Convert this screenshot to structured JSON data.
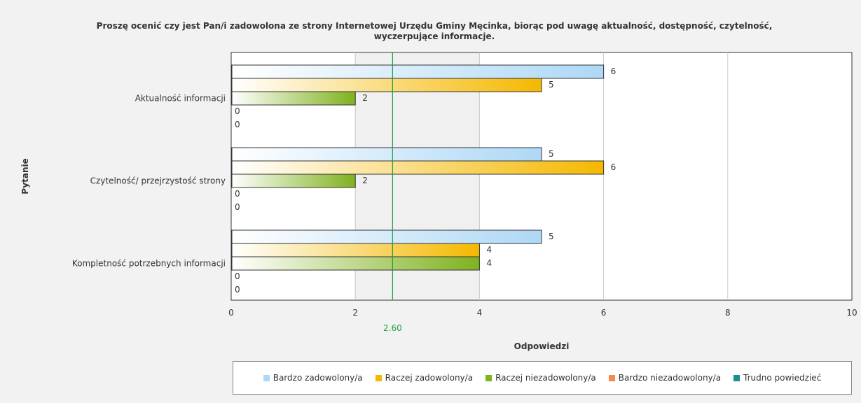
{
  "chart_data": {
    "type": "bar",
    "orientation": "horizontal",
    "title": "Proszę ocenić czy jest Pan/i zadowolona  ze strony Internetowej Urzędu Gminy Męcinka, biorąc pod uwagę aktualność, dostępność, czytelność, wyczerpujące informacje.",
    "xlabel": "Odpowiedzi",
    "ylabel": "Pytanie",
    "xlim": [
      0,
      10
    ],
    "x_ticks": [
      "0",
      "2",
      "4",
      "6",
      "8",
      "10"
    ],
    "grid": true,
    "legend_position": "bottom",
    "categories": [
      "Aktualność informacji",
      "Czytelność/ przejrzystość strony",
      "Kompletność potrzebnych informacji"
    ],
    "series": [
      {
        "name": "Bardzo zadowolony/a",
        "values": [
          6,
          5,
          5
        ],
        "color": "#aed8f6"
      },
      {
        "name": "Raczej zadowolony/a",
        "values": [
          5,
          6,
          4
        ],
        "color": "#f5b800"
      },
      {
        "name": "Raczej niezadowolony/a",
        "values": [
          2,
          2,
          4
        ],
        "color": "#7fb21e"
      },
      {
        "name": "Bardzo niezadowolony/a",
        "values": [
          0,
          0,
          0
        ],
        "color": "#f58a4a"
      },
      {
        "name": "Trudno powiedzieć",
        "values": [
          0,
          0,
          0
        ],
        "color": "#1a8f8f"
      }
    ],
    "mean_line": {
      "value": 2.6,
      "label": "2.60",
      "color": "#1f9c3c"
    }
  }
}
